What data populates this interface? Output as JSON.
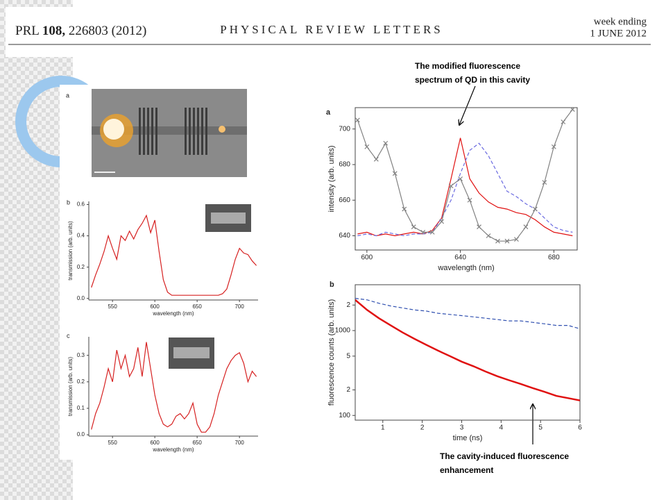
{
  "header": {
    "journal_prefix": "PRL",
    "volume": "108,",
    "article": "226803 (2012)",
    "journal": "PHYSICAL REVIEW LETTERS",
    "week_label": "week ending",
    "date": "1 JUNE 2012"
  },
  "image_panel_label": "a",
  "annotations": [
    {
      "lines": [
        "The modified fluorescence",
        "spectrum of QD in this cavity"
      ]
    },
    {
      "lines": [
        "The cavity-induced  fluorescence",
        "enhancement"
      ]
    }
  ],
  "chart_data": [
    {
      "type": "line",
      "panel_label": "b",
      "xlabel": "wavelength (nm)",
      "ylabel": "transmission (arb. units)",
      "xlim": [
        522,
        722
      ],
      "xticks": [
        550,
        600,
        650,
        700
      ],
      "ylim": [
        -0.01,
        0.62
      ],
      "yticks": [
        {
          "value": 0,
          "label": "0.0"
        },
        {
          "value": 0.2,
          "label": "0.2"
        },
        {
          "value": 0.4,
          "label": "0.4"
        },
        {
          "value": 0.6,
          "label": "0.6"
        }
      ],
      "x": [
        525,
        530,
        535,
        540,
        545,
        550,
        555,
        560,
        565,
        570,
        575,
        580,
        585,
        590,
        595,
        600,
        605,
        610,
        615,
        620,
        625,
        630,
        635,
        640,
        645,
        650,
        655,
        660,
        665,
        670,
        675,
        680,
        685,
        690,
        695,
        700,
        705,
        710,
        715,
        720
      ],
      "series": [
        {
          "color": "#d62020",
          "linestyle": "solid",
          "values": [
            0.07,
            0.15,
            0.22,
            0.3,
            0.4,
            0.32,
            0.25,
            0.4,
            0.37,
            0.43,
            0.38,
            0.44,
            0.48,
            0.53,
            0.42,
            0.5,
            0.3,
            0.12,
            0.04,
            0.02,
            0.02,
            0.02,
            0.02,
            0.02,
            0.02,
            0.02,
            0.02,
            0.02,
            0.02,
            0.02,
            0.02,
            0.03,
            0.06,
            0.15,
            0.25,
            0.32,
            0.29,
            0.28,
            0.24,
            0.21
          ]
        }
      ]
    },
    {
      "type": "line",
      "panel_label": "c",
      "xlabel": "wavelength (nm)",
      "ylabel": "transmission (arb. units)",
      "xlim": [
        522,
        722
      ],
      "xticks": [
        550,
        600,
        650,
        700
      ],
      "ylim": [
        -0.005,
        0.37
      ],
      "yticks": [
        {
          "value": 0,
          "label": "0.0"
        },
        0.1,
        0.2,
        0.3
      ],
      "x": [
        525,
        530,
        535,
        540,
        545,
        550,
        555,
        560,
        565,
        570,
        575,
        580,
        585,
        590,
        595,
        600,
        605,
        610,
        615,
        620,
        625,
        630,
        635,
        640,
        645,
        650,
        655,
        660,
        665,
        670,
        675,
        680,
        685,
        690,
        695,
        700,
        705,
        710,
        715,
        720
      ],
      "series": [
        {
          "color": "#d62020",
          "linestyle": "solid",
          "values": [
            0.02,
            0.08,
            0.12,
            0.18,
            0.25,
            0.2,
            0.32,
            0.25,
            0.3,
            0.22,
            0.25,
            0.33,
            0.22,
            0.35,
            0.25,
            0.15,
            0.08,
            0.04,
            0.03,
            0.04,
            0.07,
            0.08,
            0.06,
            0.08,
            0.12,
            0.04,
            0.01,
            0.01,
            0.03,
            0.08,
            0.15,
            0.2,
            0.25,
            0.28,
            0.3,
            0.31,
            0.27,
            0.2,
            0.24,
            0.22
          ]
        }
      ]
    },
    {
      "type": "line",
      "panel_label": "a",
      "xlabel": "wavelength (nm)",
      "ylabel": "intensity (arb. units)",
      "xlim": [
        595,
        690
      ],
      "xticks": [
        600,
        640,
        680
      ],
      "ylim": [
        632,
        712
      ],
      "yticks": [
        640,
        660,
        680,
        700
      ],
      "x": [
        596,
        600,
        604,
        608,
        612,
        616,
        620,
        624,
        628,
        632,
        636,
        640,
        644,
        648,
        652,
        656,
        660,
        664,
        668,
        672,
        676,
        680,
        684,
        688
      ],
      "series": [
        {
          "color": "#e01010",
          "linestyle": "solid",
          "values": [
            641,
            642,
            640,
            641,
            640,
            641,
            642,
            641,
            643,
            650,
            672,
            695,
            672,
            664,
            659,
            656,
            655,
            653,
            652,
            649,
            645,
            642,
            641,
            640
          ]
        },
        {
          "color": "#6a6ae0",
          "linestyle": "dashed",
          "values": [
            640,
            641,
            640,
            642,
            641,
            640,
            641,
            641,
            642,
            650,
            660,
            675,
            688,
            692,
            685,
            675,
            665,
            662,
            658,
            655,
            650,
            645,
            643,
            642
          ]
        },
        {
          "color": "#808080",
          "linestyle": "solid",
          "marker": "x",
          "values": [
            705,
            690,
            683,
            692,
            675,
            655,
            645,
            642,
            642,
            648,
            668,
            672,
            660,
            645,
            640,
            637,
            637,
            638,
            645,
            655,
            670,
            690,
            704,
            711
          ]
        }
      ]
    },
    {
      "type": "line",
      "panel_label": "b",
      "xlabel": "time (ns)",
      "ylabel": "fluorescence counts (arb. units)",
      "xlim": [
        0.3,
        6
      ],
      "xticks": [
        1,
        2,
        3,
        4,
        5,
        6
      ],
      "yscale": "log",
      "ylim": [
        88,
        3470
      ],
      "yticks": [
        {
          "value": 2000,
          "label": "2"
        },
        1000,
        {
          "value": 500,
          "label": "5"
        },
        {
          "value": 200,
          "label": "2"
        },
        100
      ],
      "x": [
        0.3,
        0.6,
        0.9,
        1.2,
        1.5,
        1.8,
        2.1,
        2.4,
        2.7,
        3.0,
        3.3,
        3.6,
        3.9,
        4.2,
        4.5,
        4.8,
        5.1,
        5.4,
        5.7,
        6.0
      ],
      "series": [
        {
          "color": "#e01010",
          "linestyle": "solid",
          "width": 2.5,
          "values": [
            2300,
            1750,
            1400,
            1150,
            950,
            800,
            680,
            580,
            500,
            430,
            380,
            330,
            290,
            260,
            235,
            210,
            190,
            170,
            160,
            150
          ]
        },
        {
          "color": "#3050b0",
          "linestyle": "dashed",
          "values": [
            2400,
            2300,
            2100,
            1950,
            1850,
            1750,
            1700,
            1600,
            1550,
            1500,
            1450,
            1400,
            1350,
            1300,
            1300,
            1250,
            1200,
            1150,
            1150,
            1050
          ]
        }
      ]
    }
  ]
}
